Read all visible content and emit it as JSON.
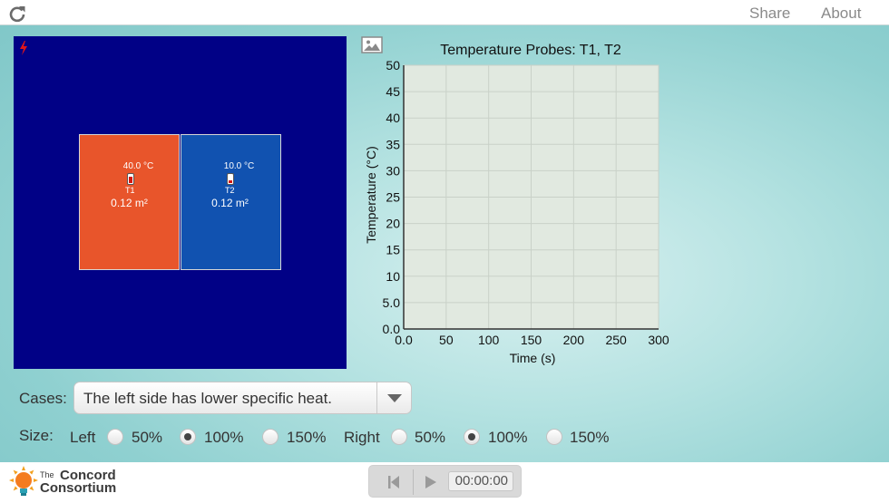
{
  "topbar": {
    "reload_icon": "reload-icon",
    "share_label": "Share",
    "about_label": "About"
  },
  "simulation": {
    "background_color": "#010186",
    "left_block": {
      "color": "#e8552b",
      "probe_temp": "40.0 °C",
      "probe_name": "T1",
      "area": "0.12 m²"
    },
    "right_block": {
      "color": "#1152b0",
      "probe_temp": "10.0 °C",
      "probe_name": "T2",
      "area": "0.12 m²"
    },
    "icons": [
      "lightning-icon",
      "thermometer-icon"
    ]
  },
  "graph": {
    "title": "Temperature Probes: T1, T2",
    "ylabel": "Temperature (°C)",
    "xlabel": "Time (s)",
    "icon": "image-icon"
  },
  "chart_data": {
    "type": "line",
    "title": "Temperature Probes: T1, T2",
    "xlabel": "Time (s)",
    "ylabel": "Temperature (°C)",
    "xlim": [
      0,
      300
    ],
    "ylim": [
      0,
      50
    ],
    "x_ticks": [
      "0.0",
      "50",
      "100",
      "150",
      "200",
      "250",
      "300"
    ],
    "y_ticks": [
      "0.0",
      "5.0",
      "10",
      "15",
      "20",
      "25",
      "30",
      "35",
      "40",
      "45",
      "50"
    ],
    "grid": true,
    "plot_background": "#e1e9e0",
    "series": []
  },
  "controls": {
    "cases_label": "Cases:",
    "cases_selected": "The left side has lower specific heat.",
    "size_label": "Size:",
    "left_label": "Left",
    "right_label": "Right",
    "left_options": [
      {
        "label": "50%",
        "checked": false
      },
      {
        "label": "100%",
        "checked": true
      },
      {
        "label": "150%",
        "checked": false
      }
    ],
    "right_options": [
      {
        "label": "50%",
        "checked": false
      },
      {
        "label": "100%",
        "checked": true
      },
      {
        "label": "150%",
        "checked": false
      }
    ]
  },
  "footer": {
    "logo_line1": "The",
    "logo_line2": "Concord",
    "logo_line3": "Consortium",
    "clock": "00:00:00",
    "icons": [
      "reset-icon",
      "play-icon",
      "lightbulb-logo-icon"
    ]
  }
}
